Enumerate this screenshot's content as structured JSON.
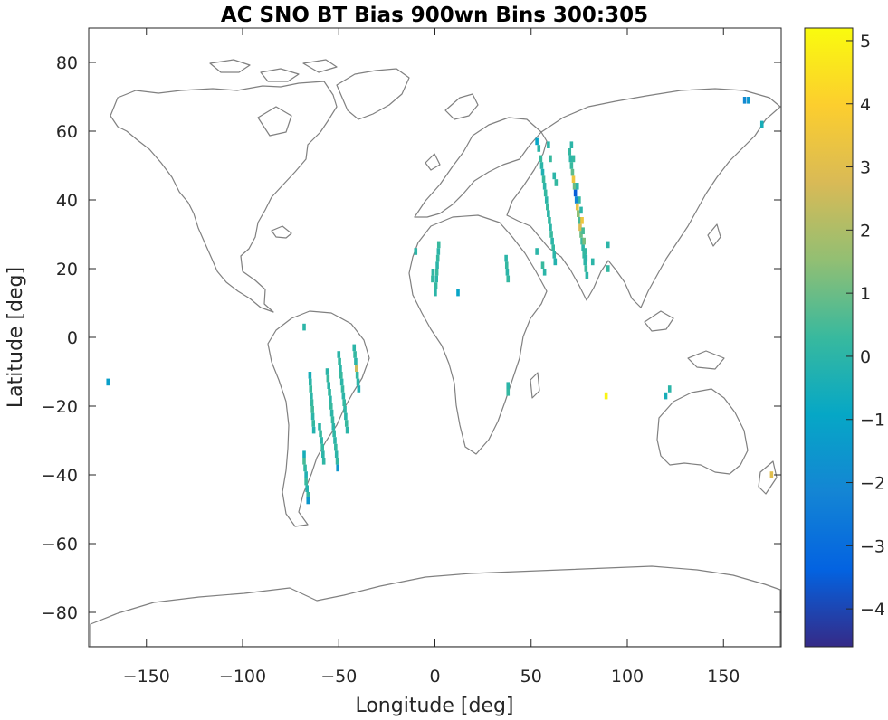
{
  "chart_data": {
    "type": "heatmap",
    "title": "AC SNO BT Bias 900wn Bins 300:305",
    "xlabel": "Longitude [deg]",
    "ylabel": "Latitude [deg]",
    "xlim": [
      -180,
      180
    ],
    "ylim": [
      -90,
      90
    ],
    "xticks": [
      -150,
      -100,
      -50,
      0,
      50,
      100,
      150
    ],
    "yticks": [
      -80,
      -60,
      -40,
      -20,
      0,
      20,
      40,
      60,
      80
    ],
    "colorbar": {
      "clim": [
        -4.6,
        5.2
      ],
      "ticks": [
        -4,
        -3,
        -2,
        -1,
        0,
        1,
        2,
        3,
        4,
        5
      ],
      "colormap": "parula"
    },
    "background_map": "world coastlines",
    "grid": false,
    "cells": [
      [
        -68,
        -34,
        -0.5
      ],
      [
        -68,
        -36,
        0.5
      ],
      [
        -67.5,
        -38,
        0.2
      ],
      [
        -67,
        -40,
        -0.3
      ],
      [
        -67,
        -42,
        0.3
      ],
      [
        -66.5,
        -44,
        -0.2
      ],
      [
        -66,
        -46,
        0.2
      ],
      [
        -66,
        -47.5,
        -1.5
      ],
      [
        -65,
        -11,
        -0.5
      ],
      [
        -64.8,
        -13,
        0
      ],
      [
        -64.6,
        -15,
        0.3
      ],
      [
        -64.3,
        -17,
        0
      ],
      [
        -64,
        -19,
        0.2
      ],
      [
        -63.7,
        -21,
        0.4
      ],
      [
        -63.5,
        -23,
        0
      ],
      [
        -63.2,
        -25,
        0.2
      ],
      [
        -63,
        -27,
        -0.2
      ],
      [
        -60,
        -26,
        0
      ],
      [
        -59.5,
        -28,
        0.3
      ],
      [
        -59,
        -30,
        0
      ],
      [
        -58.5,
        -32,
        0.2
      ],
      [
        -58.2,
        -34,
        0
      ],
      [
        -57.8,
        -36,
        0.1
      ],
      [
        -56,
        -10,
        0
      ],
      [
        -55.6,
        -12,
        0.3
      ],
      [
        -55.2,
        -14,
        0
      ],
      [
        -54.8,
        -16,
        0.2
      ],
      [
        -54.4,
        -18,
        0
      ],
      [
        -54,
        -20,
        0.3
      ],
      [
        -53.6,
        -22,
        0
      ],
      [
        -53.2,
        -24,
        0.2
      ],
      [
        -52.8,
        -26,
        0
      ],
      [
        -52.4,
        -28,
        0.1
      ],
      [
        -52,
        -30,
        0
      ],
      [
        -51.6,
        -32,
        0.2
      ],
      [
        -51.2,
        -34,
        0
      ],
      [
        -50.8,
        -36,
        0.2
      ],
      [
        -50.5,
        -38,
        -1.5
      ],
      [
        -50,
        -5,
        0
      ],
      [
        -49.6,
        -7,
        0.2
      ],
      [
        -49.2,
        -9,
        0
      ],
      [
        -48.8,
        -11,
        0.3
      ],
      [
        -48.4,
        -13,
        0
      ],
      [
        -48,
        -15,
        0.2
      ],
      [
        -47.6,
        -17,
        0
      ],
      [
        -47.2,
        -19,
        0.2
      ],
      [
        -46.8,
        -21,
        0.1
      ],
      [
        -46.4,
        -23,
        0
      ],
      [
        -46,
        -25,
        0.3
      ],
      [
        -45.6,
        -27,
        0
      ],
      [
        -42,
        -3,
        0
      ],
      [
        -41.6,
        -5,
        0.2
      ],
      [
        -41.2,
        -7,
        0
      ],
      [
        -40.8,
        -9,
        2.5
      ],
      [
        -40.4,
        -11,
        0.2
      ],
      [
        -40,
        -13,
        0
      ],
      [
        -39.6,
        -15,
        -0.3
      ],
      [
        -68,
        3,
        0
      ],
      [
        -170,
        -13,
        -1.2
      ],
      [
        2,
        27,
        0.3
      ],
      [
        1.8,
        25,
        0
      ],
      [
        1.5,
        23,
        0.2
      ],
      [
        1.2,
        21,
        0
      ],
      [
        1,
        19,
        0.3
      ],
      [
        0.8,
        17,
        0
      ],
      [
        0.5,
        15,
        0.2
      ],
      [
        0.2,
        13,
        0
      ],
      [
        -1,
        19,
        0.1
      ],
      [
        -1.2,
        17,
        0.2
      ],
      [
        -10,
        25,
        0
      ],
      [
        12,
        13,
        -1
      ],
      [
        37,
        23,
        0
      ],
      [
        37.3,
        21,
        0.2
      ],
      [
        37.6,
        19,
        0
      ],
      [
        38,
        17,
        0.2
      ],
      [
        53,
        25,
        0
      ],
      [
        56,
        21,
        0.3
      ],
      [
        57,
        19,
        0
      ],
      [
        38,
        -14,
        0
      ],
      [
        38,
        -16,
        0.2
      ],
      [
        53,
        57,
        -1
      ],
      [
        54,
        55,
        0
      ],
      [
        55,
        52,
        0.3
      ],
      [
        55.5,
        50,
        0
      ],
      [
        56,
        48,
        -0.3
      ],
      [
        56.5,
        46,
        0.3
      ],
      [
        57,
        44,
        0
      ],
      [
        57.5,
        42,
        0.2
      ],
      [
        58,
        40,
        0
      ],
      [
        58.5,
        38,
        0.3
      ],
      [
        59,
        36,
        0
      ],
      [
        59.5,
        34,
        0.2
      ],
      [
        60,
        32,
        0
      ],
      [
        60.5,
        30,
        0.3
      ],
      [
        61,
        28,
        0
      ],
      [
        61.5,
        26,
        0.2
      ],
      [
        62,
        24,
        0
      ],
      [
        62.5,
        22,
        -0.2
      ],
      [
        70,
        54,
        0.2
      ],
      [
        70.5,
        52,
        0
      ],
      [
        71,
        50,
        0.3
      ],
      [
        71.5,
        48,
        0.8
      ],
      [
        72,
        46,
        3.5
      ],
      [
        72.5,
        44,
        1
      ],
      [
        73,
        42,
        -3.5
      ],
      [
        73.5,
        40,
        -2
      ],
      [
        74,
        38,
        3.2
      ],
      [
        74.5,
        36,
        1.5
      ],
      [
        75,
        34,
        0.5
      ],
      [
        75.5,
        32,
        2.8
      ],
      [
        76,
        30,
        1
      ],
      [
        76.5,
        28,
        0.3
      ],
      [
        77,
        26,
        0
      ],
      [
        77.5,
        24,
        0.2
      ],
      [
        78,
        22,
        0
      ],
      [
        78.5,
        20,
        0.3
      ],
      [
        79,
        18,
        0
      ],
      [
        71,
        56,
        0
      ],
      [
        72,
        52,
        0.2
      ],
      [
        74,
        44,
        0
      ],
      [
        75,
        40,
        0.3
      ],
      [
        76,
        37,
        0
      ],
      [
        76.5,
        34,
        3.5
      ],
      [
        77,
        31,
        0.5
      ],
      [
        77.5,
        28,
        1.2
      ],
      [
        78,
        25,
        0.2
      ],
      [
        78.5,
        23,
        0
      ],
      [
        59,
        56,
        0
      ],
      [
        60,
        52,
        0.3
      ],
      [
        62,
        47,
        0
      ],
      [
        63,
        45,
        0.2
      ],
      [
        90,
        27,
        0
      ],
      [
        90,
        20,
        0.2
      ],
      [
        82,
        22,
        0
      ],
      [
        161,
        69,
        -2
      ],
      [
        163,
        69,
        -1.5
      ],
      [
        170,
        62,
        -0.5
      ],
      [
        89,
        -17,
        5
      ],
      [
        120,
        -17,
        -0.5
      ],
      [
        122,
        -15,
        0
      ],
      [
        175,
        -40,
        3
      ]
    ]
  }
}
